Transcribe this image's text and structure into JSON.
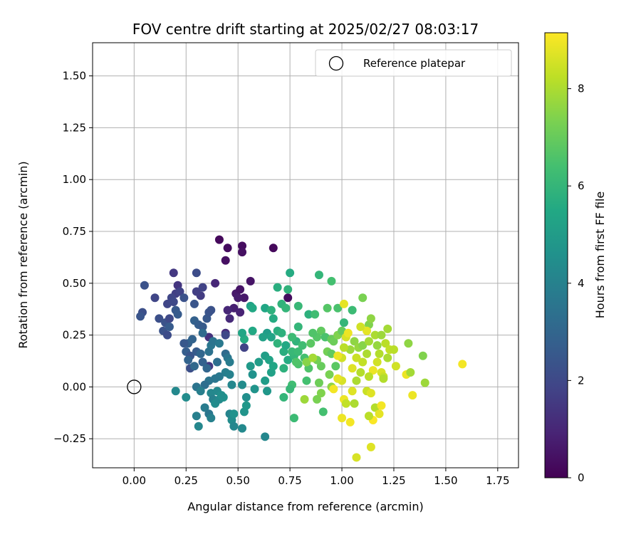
{
  "chart_data": {
    "type": "scatter",
    "title": "FOV centre drift starting at 2025/02/27 08:03:17",
    "xlabel": "Angular distance from reference (arcmin)",
    "ylabel": "Rotation from reference (arcmin)",
    "xlim": [
      -0.2,
      1.85
    ],
    "ylim": [
      -0.39,
      1.66
    ],
    "xticks": [
      0.0,
      0.25,
      0.5,
      0.75,
      1.0,
      1.25,
      1.5,
      1.75
    ],
    "xtick_labels": [
      "0.00",
      "0.25",
      "0.50",
      "0.75",
      "1.00",
      "1.25",
      "1.50",
      "1.75"
    ],
    "yticks": [
      -0.25,
      0.0,
      0.25,
      0.5,
      0.75,
      1.0,
      1.25,
      1.5
    ],
    "ytick_labels": [
      "−0.25",
      "0.00",
      "0.25",
      "0.50",
      "0.75",
      "1.00",
      "1.25",
      "1.50"
    ],
    "grid": true,
    "legend": {
      "placement": "top-right",
      "entries": [
        {
          "label": "Reference platepar",
          "marker": "open-circle"
        }
      ]
    },
    "reference_point": {
      "x": 0.0,
      "y": 0.0
    },
    "colorbar": {
      "label": "Hours from first FF file",
      "colormap": "viridis",
      "range": [
        0,
        9.15
      ],
      "ticks": [
        0,
        2,
        4,
        6,
        8
      ]
    },
    "points": [
      {
        "x": 0.41,
        "y": 0.71,
        "c": 0.2
      },
      {
        "x": 0.45,
        "y": 0.67,
        "c": 0.3
      },
      {
        "x": 0.44,
        "y": 0.61,
        "c": 0.4
      },
      {
        "x": 0.52,
        "y": 0.68,
        "c": 0.3
      },
      {
        "x": 0.52,
        "y": 0.65,
        "c": 0.4
      },
      {
        "x": 0.67,
        "y": 0.67,
        "c": 0.2
      },
      {
        "x": 0.56,
        "y": 0.51,
        "c": 0.5
      },
      {
        "x": 0.49,
        "y": 0.45,
        "c": 0.6
      },
      {
        "x": 0.51,
        "y": 0.47,
        "c": 0.5
      },
      {
        "x": 0.53,
        "y": 0.43,
        "c": 0.6
      },
      {
        "x": 0.5,
        "y": 0.43,
        "c": 0.7
      },
      {
        "x": 0.48,
        "y": 0.38,
        "c": 0.8
      },
      {
        "x": 0.51,
        "y": 0.36,
        "c": 0.9
      },
      {
        "x": 0.74,
        "y": 0.43,
        "c": 0.3
      },
      {
        "x": 0.45,
        "y": 0.37,
        "c": 1.0
      },
      {
        "x": 0.44,
        "y": 0.26,
        "c": 1.2
      },
      {
        "x": 0.46,
        "y": 0.33,
        "c": 1.1
      },
      {
        "x": 0.36,
        "y": 0.24,
        "c": 1.3
      },
      {
        "x": 0.36,
        "y": 0.1,
        "c": 1.5
      },
      {
        "x": 0.39,
        "y": 0.5,
        "c": 1.0
      },
      {
        "x": 0.32,
        "y": 0.44,
        "c": 1.6
      },
      {
        "x": 0.33,
        "y": 0.48,
        "c": 1.8
      },
      {
        "x": 0.3,
        "y": 0.46,
        "c": 1.7
      },
      {
        "x": 0.3,
        "y": 0.55,
        "c": 2.1
      },
      {
        "x": 0.21,
        "y": 0.49,
        "c": 1.4
      },
      {
        "x": 0.19,
        "y": 0.55,
        "c": 1.5
      },
      {
        "x": 0.2,
        "y": 0.45,
        "c": 1.7
      },
      {
        "x": 0.18,
        "y": 0.43,
        "c": 1.9
      },
      {
        "x": 0.22,
        "y": 0.46,
        "c": 1.8
      },
      {
        "x": 0.16,
        "y": 0.4,
        "c": 1.9
      },
      {
        "x": 0.19,
        "y": 0.41,
        "c": 2.0
      },
      {
        "x": 0.24,
        "y": 0.43,
        "c": 2.3
      },
      {
        "x": 0.29,
        "y": 0.4,
        "c": 2.4
      },
      {
        "x": 0.1,
        "y": 0.43,
        "c": 1.9
      },
      {
        "x": 0.05,
        "y": 0.49,
        "c": 2.3
      },
      {
        "x": 0.04,
        "y": 0.36,
        "c": 2.2
      },
      {
        "x": 0.03,
        "y": 0.34,
        "c": 2.4
      },
      {
        "x": 0.12,
        "y": 0.33,
        "c": 2.2
      },
      {
        "x": 0.15,
        "y": 0.31,
        "c": 2.3
      },
      {
        "x": 0.17,
        "y": 0.33,
        "c": 2.0
      },
      {
        "x": 0.2,
        "y": 0.37,
        "c": 2.5
      },
      {
        "x": 0.21,
        "y": 0.35,
        "c": 2.6
      },
      {
        "x": 0.14,
        "y": 0.27,
        "c": 2.3
      },
      {
        "x": 0.16,
        "y": 0.25,
        "c": 2.1
      },
      {
        "x": 0.17,
        "y": 0.29,
        "c": 2.6
      },
      {
        "x": 0.29,
        "y": 0.32,
        "c": 2.8
      },
      {
        "x": 0.31,
        "y": 0.3,
        "c": 2.7
      },
      {
        "x": 0.33,
        "y": 0.29,
        "c": 2.6
      },
      {
        "x": 0.35,
        "y": 0.33,
        "c": 2.5
      },
      {
        "x": 0.36,
        "y": 0.36,
        "c": 2.4
      },
      {
        "x": 0.37,
        "y": 0.37,
        "c": 2.3
      },
      {
        "x": 0.33,
        "y": 0.26,
        "c": 3.2
      },
      {
        "x": 0.26,
        "y": 0.21,
        "c": 2.8
      },
      {
        "x": 0.28,
        "y": 0.23,
        "c": 2.9
      },
      {
        "x": 0.24,
        "y": 0.21,
        "c": 2.5
      },
      {
        "x": 0.25,
        "y": 0.17,
        "c": 2.7
      },
      {
        "x": 0.27,
        "y": 0.15,
        "c": 2.4
      },
      {
        "x": 0.3,
        "y": 0.17,
        "c": 2.6
      },
      {
        "x": 0.32,
        "y": 0.16,
        "c": 3.0
      },
      {
        "x": 0.33,
        "y": 0.12,
        "c": 2.8
      },
      {
        "x": 0.26,
        "y": 0.13,
        "c": 2.9
      },
      {
        "x": 0.27,
        "y": 0.09,
        "c": 2.2
      },
      {
        "x": 0.29,
        "y": 0.1,
        "c": 3.1
      },
      {
        "x": 0.35,
        "y": 0.09,
        "c": 3.0
      },
      {
        "x": 0.36,
        "y": 0.17,
        "c": 3.4
      },
      {
        "x": 0.37,
        "y": 0.2,
        "c": 3.6
      },
      {
        "x": 0.38,
        "y": 0.22,
        "c": 3.5
      },
      {
        "x": 0.41,
        "y": 0.21,
        "c": 3.7
      },
      {
        "x": 0.4,
        "y": 0.12,
        "c": 3.3
      },
      {
        "x": 0.44,
        "y": 0.16,
        "c": 3.2
      },
      {
        "x": 0.45,
        "y": 0.14,
        "c": 3.6
      },
      {
        "x": 0.46,
        "y": 0.12,
        "c": 3.8
      },
      {
        "x": 0.44,
        "y": 0.07,
        "c": 3.9
      },
      {
        "x": 0.46,
        "y": 0.06,
        "c": 4.0
      },
      {
        "x": 0.41,
        "y": 0.05,
        "c": 3.7
      },
      {
        "x": 0.39,
        "y": 0.04,
        "c": 3.6
      },
      {
        "x": 0.36,
        "y": 0.03,
        "c": 3.5
      },
      {
        "x": 0.34,
        "y": 0.01,
        "c": 3.3
      },
      {
        "x": 0.3,
        "y": 0.0,
        "c": 3.5
      },
      {
        "x": 0.32,
        "y": -0.02,
        "c": 3.9
      },
      {
        "x": 0.37,
        "y": -0.03,
        "c": 4.2
      },
      {
        "x": 0.4,
        "y": -0.02,
        "c": 4.3
      },
      {
        "x": 0.38,
        "y": -0.06,
        "c": 4.0
      },
      {
        "x": 0.34,
        "y": -0.1,
        "c": 3.8
      },
      {
        "x": 0.36,
        "y": -0.13,
        "c": 3.6
      },
      {
        "x": 0.3,
        "y": -0.14,
        "c": 3.9
      },
      {
        "x": 0.31,
        "y": -0.19,
        "c": 4.2
      },
      {
        "x": 0.37,
        "y": -0.15,
        "c": 4.0
      },
      {
        "x": 0.39,
        "y": -0.08,
        "c": 4.4
      },
      {
        "x": 0.41,
        "y": -0.06,
        "c": 4.3
      },
      {
        "x": 0.43,
        "y": -0.05,
        "c": 4.6
      },
      {
        "x": 0.42,
        "y": -0.04,
        "c": 4.5
      },
      {
        "x": 0.46,
        "y": -0.13,
        "c": 4.1
      },
      {
        "x": 0.47,
        "y": -0.16,
        "c": 4.4
      },
      {
        "x": 0.48,
        "y": -0.19,
        "c": 4.2
      },
      {
        "x": 0.48,
        "y": -0.13,
        "c": 4.6
      },
      {
        "x": 0.52,
        "y": -0.2,
        "c": 4.3
      },
      {
        "x": 0.53,
        "y": -0.12,
        "c": 4.7
      },
      {
        "x": 0.54,
        "y": -0.09,
        "c": 4.8
      },
      {
        "x": 0.54,
        "y": -0.05,
        "c": 4.5
      },
      {
        "x": 0.52,
        "y": 0.01,
        "c": 4.4
      },
      {
        "x": 0.47,
        "y": 0.01,
        "c": 4.2
      },
      {
        "x": 0.53,
        "y": 0.19,
        "c": 1.8
      },
      {
        "x": 0.44,
        "y": 0.25,
        "c": 2.0
      },
      {
        "x": 0.2,
        "y": -0.02,
        "c": 4.3
      },
      {
        "x": 0.25,
        "y": -0.05,
        "c": 4.4
      },
      {
        "x": 0.63,
        "y": -0.24,
        "c": 4.2
      },
      {
        "x": 0.57,
        "y": 0.06,
        "c": 4.6
      },
      {
        "x": 0.58,
        "y": -0.01,
        "c": 4.7
      },
      {
        "x": 0.56,
        "y": 0.1,
        "c": 4.9
      },
      {
        "x": 0.6,
        "y": 0.12,
        "c": 5.0
      },
      {
        "x": 0.63,
        "y": 0.03,
        "c": 5.0
      },
      {
        "x": 0.64,
        "y": -0.02,
        "c": 4.8
      },
      {
        "x": 0.66,
        "y": 0.07,
        "c": 5.2
      },
      {
        "x": 0.67,
        "y": 0.1,
        "c": 5.4
      },
      {
        "x": 0.63,
        "y": 0.15,
        "c": 5.1
      },
      {
        "x": 0.65,
        "y": 0.13,
        "c": 5.3
      },
      {
        "x": 0.64,
        "y": 0.26,
        "c": 5.0
      },
      {
        "x": 0.66,
        "y": 0.24,
        "c": 5.3
      },
      {
        "x": 0.62,
        "y": 0.24,
        "c": 5.2
      },
      {
        "x": 0.57,
        "y": 0.27,
        "c": 5.5
      },
      {
        "x": 0.53,
        "y": 0.23,
        "c": 5.6
      },
      {
        "x": 0.52,
        "y": 0.26,
        "c": 5.4
      },
      {
        "x": 0.56,
        "y": 0.39,
        "c": 5.2
      },
      {
        "x": 0.57,
        "y": 0.38,
        "c": 5.5
      },
      {
        "x": 0.63,
        "y": 0.38,
        "c": 5.4
      },
      {
        "x": 0.66,
        "y": 0.37,
        "c": 5.8
      },
      {
        "x": 0.67,
        "y": 0.33,
        "c": 5.6
      },
      {
        "x": 0.69,
        "y": 0.27,
        "c": 5.7
      },
      {
        "x": 0.71,
        "y": 0.26,
        "c": 5.8
      },
      {
        "x": 0.69,
        "y": 0.21,
        "c": 5.9
      },
      {
        "x": 0.72,
        "y": 0.17,
        "c": 5.7
      },
      {
        "x": 0.73,
        "y": 0.2,
        "c": 5.5
      },
      {
        "x": 0.74,
        "y": 0.13,
        "c": 5.6
      },
      {
        "x": 0.72,
        "y": 0.09,
        "c": 5.8
      },
      {
        "x": 0.77,
        "y": 0.15,
        "c": 6.0
      },
      {
        "x": 0.76,
        "y": 0.17,
        "c": 6.1
      },
      {
        "x": 0.79,
        "y": 0.17,
        "c": 6.2
      },
      {
        "x": 0.78,
        "y": 0.22,
        "c": 5.9
      },
      {
        "x": 0.76,
        "y": 0.24,
        "c": 6.2
      },
      {
        "x": 0.79,
        "y": 0.29,
        "c": 6.0
      },
      {
        "x": 0.81,
        "y": 0.2,
        "c": 6.3
      },
      {
        "x": 0.82,
        "y": 0.14,
        "c": 6.4
      },
      {
        "x": 0.79,
        "y": 0.11,
        "c": 6.5
      },
      {
        "x": 0.78,
        "y": 0.12,
        "c": 6.6
      },
      {
        "x": 0.76,
        "y": 0.01,
        "c": 6.3
      },
      {
        "x": 0.75,
        "y": -0.01,
        "c": 6.1
      },
      {
        "x": 0.72,
        "y": -0.05,
        "c": 6.0
      },
      {
        "x": 0.77,
        "y": -0.15,
        "c": 6.2
      },
      {
        "x": 0.83,
        "y": 0.03,
        "c": 6.4
      },
      {
        "x": 0.84,
        "y": 0.09,
        "c": 6.6
      },
      {
        "x": 0.84,
        "y": 0.35,
        "c": 5.8
      },
      {
        "x": 0.87,
        "y": 0.35,
        "c": 6.3
      },
      {
        "x": 0.74,
        "y": 0.47,
        "c": 5.9
      },
      {
        "x": 0.75,
        "y": 0.55,
        "c": 5.6
      },
      {
        "x": 0.69,
        "y": 0.48,
        "c": 5.7
      },
      {
        "x": 0.71,
        "y": 0.4,
        "c": 5.9
      },
      {
        "x": 0.73,
        "y": 0.38,
        "c": 6.0
      },
      {
        "x": 0.79,
        "y": 0.39,
        "c": 6.1
      },
      {
        "x": 0.89,
        "y": 0.54,
        "c": 6.0
      },
      {
        "x": 0.95,
        "y": 0.51,
        "c": 6.4
      },
      {
        "x": 0.93,
        "y": 0.38,
        "c": 6.7
      },
      {
        "x": 0.98,
        "y": 0.38,
        "c": 6.5
      },
      {
        "x": 0.9,
        "y": 0.27,
        "c": 6.9
      },
      {
        "x": 0.88,
        "y": 0.24,
        "c": 6.7
      },
      {
        "x": 0.86,
        "y": 0.26,
        "c": 6.6
      },
      {
        "x": 0.85,
        "y": 0.21,
        "c": 6.8
      },
      {
        "x": 0.92,
        "y": 0.24,
        "c": 6.5
      },
      {
        "x": 0.95,
        "y": 0.23,
        "c": 7.0
      },
      {
        "x": 0.96,
        "y": 0.22,
        "c": 7.1
      },
      {
        "x": 0.93,
        "y": 0.17,
        "c": 7.2
      },
      {
        "x": 0.95,
        "y": 0.16,
        "c": 6.9
      },
      {
        "x": 0.9,
        "y": 0.1,
        "c": 7.0
      },
      {
        "x": 0.94,
        "y": 0.06,
        "c": 7.3
      },
      {
        "x": 0.97,
        "y": 0.1,
        "c": 6.8
      },
      {
        "x": 0.88,
        "y": 0.13,
        "c": 7.2
      },
      {
        "x": 0.89,
        "y": 0.02,
        "c": 7.1
      },
      {
        "x": 0.9,
        "y": -0.03,
        "c": 7.4
      },
      {
        "x": 0.95,
        "y": 0.0,
        "c": 7.6
      },
      {
        "x": 0.91,
        "y": -0.12,
        "c": 6.4
      },
      {
        "x": 0.88,
        "y": -0.06,
        "c": 7.3
      },
      {
        "x": 0.82,
        "y": -0.06,
        "c": 7.8
      },
      {
        "x": 0.83,
        "y": 0.12,
        "c": 7.5
      },
      {
        "x": 0.86,
        "y": 0.14,
        "c": 7.9
      },
      {
        "x": 0.98,
        "y": 0.25,
        "c": 7.4
      },
      {
        "x": 1.0,
        "y": 0.27,
        "c": 7.0
      },
      {
        "x": 1.01,
        "y": 0.31,
        "c": 6.0
      },
      {
        "x": 1.05,
        "y": 0.37,
        "c": 6.2
      },
      {
        "x": 1.1,
        "y": 0.43,
        "c": 7.3
      },
      {
        "x": 1.01,
        "y": 0.4,
        "c": 8.8
      },
      {
        "x": 1.02,
        "y": 0.24,
        "c": 8.6
      },
      {
        "x": 1.03,
        "y": 0.26,
        "c": 8.9
      },
      {
        "x": 1.04,
        "y": 0.18,
        "c": 7.8
      },
      {
        "x": 1.06,
        "y": 0.22,
        "c": 7.6
      },
      {
        "x": 1.08,
        "y": 0.19,
        "c": 7.7
      },
      {
        "x": 1.1,
        "y": 0.2,
        "c": 7.5
      },
      {
        "x": 1.13,
        "y": 0.3,
        "c": 7.4
      },
      {
        "x": 1.14,
        "y": 0.33,
        "c": 7.6
      },
      {
        "x": 1.12,
        "y": 0.27,
        "c": 8.8
      },
      {
        "x": 1.16,
        "y": 0.25,
        "c": 8.0
      },
      {
        "x": 1.19,
        "y": 0.25,
        "c": 7.8
      },
      {
        "x": 1.22,
        "y": 0.28,
        "c": 7.9
      },
      {
        "x": 1.21,
        "y": 0.21,
        "c": 8.2
      },
      {
        "x": 1.23,
        "y": 0.18,
        "c": 8.3
      },
      {
        "x": 1.18,
        "y": 0.16,
        "c": 8.1
      },
      {
        "x": 1.12,
        "y": 0.16,
        "c": 8.0
      },
      {
        "x": 1.1,
        "y": 0.12,
        "c": 8.3
      },
      {
        "x": 1.07,
        "y": 0.14,
        "c": 8.4
      },
      {
        "x": 1.05,
        "y": 0.09,
        "c": 8.7
      },
      {
        "x": 1.0,
        "y": 0.14,
        "c": 8.5
      },
      {
        "x": 0.98,
        "y": 0.15,
        "c": 8.9
      },
      {
        "x": 1.01,
        "y": 0.19,
        "c": 8.2
      },
      {
        "x": 1.17,
        "y": 0.12,
        "c": 8.5
      },
      {
        "x": 1.19,
        "y": 0.07,
        "c": 8.6
      },
      {
        "x": 1.2,
        "y": 0.05,
        "c": 8.4
      },
      {
        "x": 1.15,
        "y": 0.08,
        "c": 8.9
      },
      {
        "x": 1.13,
        "y": 0.05,
        "c": 8.2
      },
      {
        "x": 1.09,
        "y": 0.07,
        "c": 8.1
      },
      {
        "x": 1.07,
        "y": 0.03,
        "c": 8.0
      },
      {
        "x": 1.05,
        "y": -0.02,
        "c": 8.7
      },
      {
        "x": 1.0,
        "y": 0.03,
        "c": 8.6
      },
      {
        "x": 0.98,
        "y": 0.04,
        "c": 8.8
      },
      {
        "x": 0.96,
        "y": -0.01,
        "c": 9.0
      },
      {
        "x": 1.01,
        "y": -0.06,
        "c": 8.9
      },
      {
        "x": 1.02,
        "y": -0.08,
        "c": 8.3
      },
      {
        "x": 1.06,
        "y": -0.08,
        "c": 8.0
      },
      {
        "x": 1.12,
        "y": -0.02,
        "c": 8.4
      },
      {
        "x": 1.14,
        "y": -0.03,
        "c": 8.7
      },
      {
        "x": 1.16,
        "y": -0.1,
        "c": 8.1
      },
      {
        "x": 1.19,
        "y": -0.09,
        "c": 9.0
      },
      {
        "x": 1.18,
        "y": -0.13,
        "c": 8.8
      },
      {
        "x": 1.15,
        "y": -0.16,
        "c": 9.1
      },
      {
        "x": 1.13,
        "y": -0.14,
        "c": 8.2
      },
      {
        "x": 1.04,
        "y": -0.17,
        "c": 9.0
      },
      {
        "x": 1.0,
        "y": -0.15,
        "c": 8.9
      },
      {
        "x": 1.07,
        "y": -0.34,
        "c": 8.6
      },
      {
        "x": 1.14,
        "y": -0.29,
        "c": 8.7
      },
      {
        "x": 1.25,
        "y": 0.18,
        "c": 8.2
      },
      {
        "x": 1.26,
        "y": 0.1,
        "c": 8.5
      },
      {
        "x": 1.31,
        "y": 0.06,
        "c": 8.9
      },
      {
        "x": 1.32,
        "y": 0.21,
        "c": 7.6
      },
      {
        "x": 1.33,
        "y": 0.07,
        "c": 7.9
      },
      {
        "x": 1.34,
        "y": -0.04,
        "c": 8.9
      },
      {
        "x": 1.39,
        "y": 0.15,
        "c": 7.4
      },
      {
        "x": 1.4,
        "y": 0.02,
        "c": 7.8
      },
      {
        "x": 1.58,
        "y": 0.11,
        "c": 9.0
      },
      {
        "x": 1.2,
        "y": 0.04,
        "c": 8.1
      },
      {
        "x": 1.22,
        "y": 0.14,
        "c": 8.0
      },
      {
        "x": 1.13,
        "y": 0.22,
        "c": 7.9
      },
      {
        "x": 1.09,
        "y": 0.29,
        "c": 8.5
      },
      {
        "x": 1.17,
        "y": 0.2,
        "c": 7.7
      }
    ]
  }
}
